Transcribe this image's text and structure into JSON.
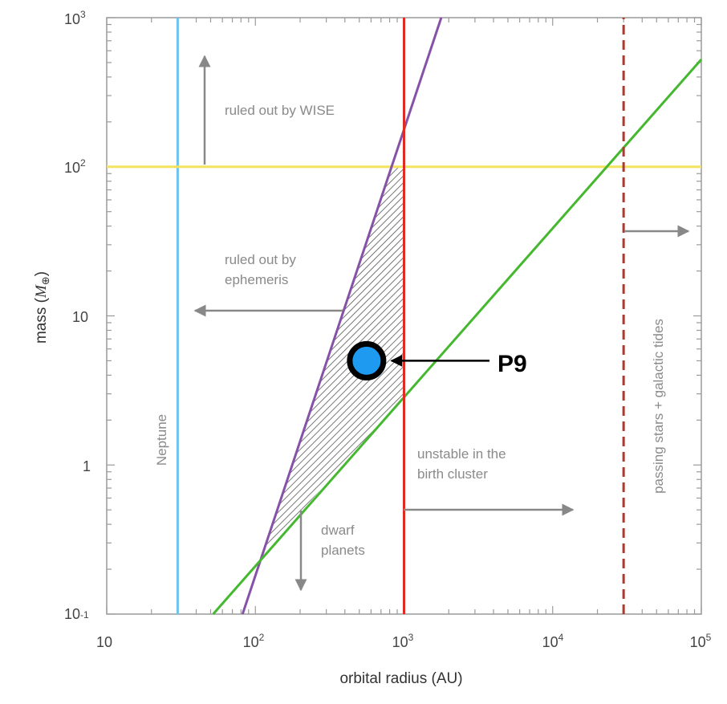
{
  "chart_data": {
    "type": "line",
    "title": "",
    "xlabel": "orbital radius (AU)",
    "ylabel_text": "mass (",
    "ylabel_symbol": "M",
    "ylabel_sub": "⊕",
    "ylabel_close": ")",
    "xscale": "log",
    "yscale": "log",
    "xlim": [
      10,
      100000
    ],
    "ylim": [
      0.1,
      1000
    ],
    "grid": false,
    "x_ticks": [
      {
        "base": "10",
        "exp": ""
      },
      {
        "base": "10",
        "exp": "2"
      },
      {
        "base": "10",
        "exp": "3"
      },
      {
        "base": "10",
        "exp": "4"
      },
      {
        "base": "10",
        "exp": "5"
      }
    ],
    "y_ticks": [
      {
        "base": "10",
        "exp": "-1"
      },
      {
        "base": "1",
        "exp": ""
      },
      {
        "base": "10",
        "exp": ""
      },
      {
        "base": "10",
        "exp": "2"
      },
      {
        "base": "10",
        "exp": "3"
      }
    ],
    "series": [
      {
        "key": "neptune",
        "color": "#6ec3ec",
        "style": "solid",
        "points": [
          [
            30,
            0.1
          ],
          [
            30,
            1000
          ]
        ]
      },
      {
        "key": "wise",
        "color": "#f3e35d",
        "style": "solid",
        "points": [
          [
            10,
            100
          ],
          [
            100000,
            100
          ]
        ]
      },
      {
        "key": "ephemeris",
        "color": "#8652a8",
        "style": "solid",
        "points": [
          [
            82,
            0.1
          ],
          [
            1780,
            1000
          ]
        ]
      },
      {
        "key": "stability",
        "color": "#44b82e",
        "style": "solid",
        "points": [
          [
            52,
            0.1
          ],
          [
            100000,
            525
          ]
        ]
      },
      {
        "key": "birth-cluster",
        "color": "#e02b25",
        "style": "solid",
        "points": [
          [
            1000,
            0.1
          ],
          [
            1000,
            1000
          ]
        ]
      },
      {
        "key": "galactic",
        "color": "#a83c35",
        "style": "dashed",
        "points": [
          [
            30000,
            0.1
          ],
          [
            30000,
            1000
          ]
        ]
      }
    ],
    "allowed_region": {
      "points": [
        [
          112,
          0.25
        ],
        [
          810,
          100
        ],
        [
          1000,
          100
        ],
        [
          1000,
          2.9
        ]
      ]
    },
    "annotations": {
      "wise": [
        "ruled out by WISE"
      ],
      "ephemeris": [
        "ruled out by",
        "ephemeris"
      ],
      "neptune": [
        "Neptune"
      ],
      "cluster": [
        "unstable in the",
        "birth cluster"
      ],
      "dwarf": [
        "dwarf",
        "planets"
      ],
      "tides": [
        "passing stars + galactic tides"
      ]
    },
    "point": {
      "label": "P9",
      "x": 560,
      "y": 5,
      "color": "#1e9bf0"
    }
  }
}
